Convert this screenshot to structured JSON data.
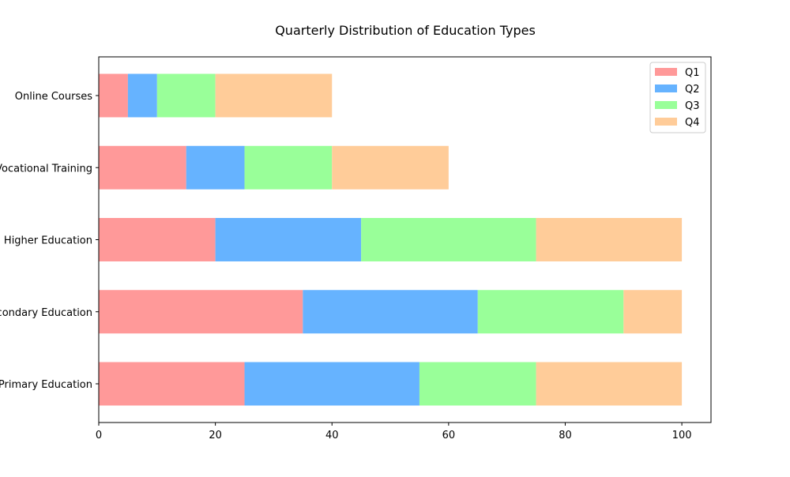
{
  "chart_data": {
    "type": "bar",
    "orientation": "horizontal",
    "stacked": true,
    "title": "Quarterly Distribution of Education Types",
    "xlabel": "",
    "ylabel": "",
    "categories": [
      "Primary Education",
      "Secondary Education",
      "Higher Education",
      "Vocational Training",
      "Online Courses"
    ],
    "series": [
      {
        "name": "Q1",
        "color": "#ff9999",
        "values": [
          25,
          35,
          20,
          15,
          5
        ]
      },
      {
        "name": "Q2",
        "color": "#66b3ff",
        "values": [
          30,
          30,
          25,
          10,
          5
        ]
      },
      {
        "name": "Q3",
        "color": "#99ff99",
        "values": [
          20,
          25,
          30,
          15,
          10
        ]
      },
      {
        "name": "Q4",
        "color": "#ffcc99",
        "values": [
          25,
          10,
          25,
          20,
          20
        ]
      }
    ],
    "xlim": [
      0,
      105
    ],
    "xticks": [
      0,
      20,
      40,
      60,
      80,
      100
    ],
    "grid": false,
    "legend_position": "top-right"
  }
}
